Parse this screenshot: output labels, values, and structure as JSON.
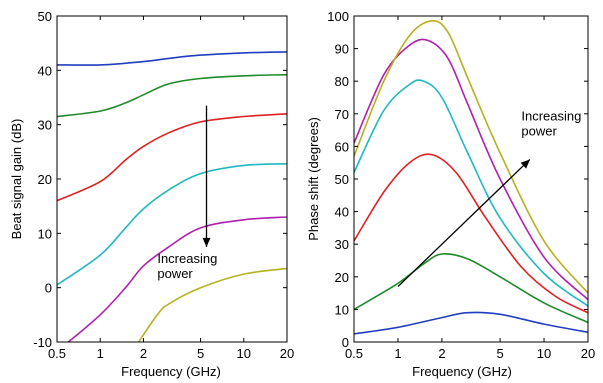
{
  "chart_data": [
    {
      "type": "line",
      "xlabel": "Frequency (GHz)",
      "ylabel": "Beat signal gain (dB)",
      "xscale": "log",
      "xlim": [
        0.5,
        20
      ],
      "ylim": [
        -10,
        50
      ],
      "xticks": [
        0.5,
        1,
        2,
        5,
        10,
        20
      ],
      "xtick_labels": [
        "0.5",
        "1",
        "2",
        "5",
        "10",
        "20"
      ],
      "yticks": [
        -10,
        0,
        10,
        20,
        30,
        40,
        50
      ],
      "ytick_labels": [
        "-10",
        "0",
        "10",
        "20",
        "30",
        "40",
        "50"
      ],
      "grid": false,
      "annotation": {
        "text_lines": [
          "Increasing",
          "power"
        ],
        "arrow_from": [
          5.5,
          33.5
        ],
        "arrow_to": [
          5.5,
          7.5
        ],
        "text_at": [
          2.5,
          4.5
        ]
      },
      "series": [
        {
          "color": "#1f3fbf",
          "x": [
            0.5,
            1,
            2,
            3,
            5,
            10,
            20
          ],
          "y": [
            41,
            41,
            41.6,
            42.2,
            42.8,
            43.2,
            43.4
          ]
        },
        {
          "color": "#1f8a2a",
          "x": [
            0.5,
            1,
            1.5,
            2,
            3,
            5,
            10,
            20
          ],
          "y": [
            31.5,
            32.5,
            34,
            35.5,
            37.5,
            38.5,
            39,
            39.2
          ]
        },
        {
          "color": "#e02020",
          "x": [
            0.5,
            1,
            1.5,
            2,
            3,
            5,
            10,
            20
          ],
          "y": [
            16,
            19.5,
            23.5,
            26,
            28.5,
            30.5,
            31.5,
            32
          ]
        },
        {
          "color": "#20b8c0",
          "x": [
            0.5,
            1,
            1.5,
            2,
            3,
            5,
            10,
            20
          ],
          "y": [
            0.5,
            6,
            11,
            14.5,
            18,
            21,
            22.5,
            22.8
          ]
        },
        {
          "color": "#b020b0",
          "x": [
            0.6,
            1,
            1.5,
            2,
            3,
            5,
            10,
            20
          ],
          "y": [
            -10,
            -5,
            0,
            4,
            7.5,
            11,
            12.5,
            13
          ]
        },
        {
          "color": "#b8b020",
          "x": [
            1.85,
            2.5,
            3,
            5,
            10,
            20
          ],
          "y": [
            -10,
            -5,
            -3,
            0,
            2.5,
            3.5
          ]
        }
      ]
    },
    {
      "type": "line",
      "xlabel": "Frequency (GHz)",
      "ylabel": "Phase shift (degrees)",
      "xscale": "log",
      "xlim": [
        0.5,
        20
      ],
      "ylim": [
        0,
        100
      ],
      "xticks": [
        0.5,
        1,
        2,
        5,
        10,
        20
      ],
      "xtick_labels": [
        "0.5",
        "1",
        "2",
        "5",
        "10",
        "20"
      ],
      "yticks": [
        0,
        10,
        20,
        30,
        40,
        50,
        60,
        70,
        80,
        90,
        100
      ],
      "ytick_labels": [
        "0",
        "10",
        "20",
        "30",
        "40",
        "50",
        "60",
        "70",
        "80",
        "90",
        "100"
      ],
      "grid": false,
      "annotation": {
        "text_lines": [
          "Increasing",
          "power"
        ],
        "arrow_from": [
          1,
          17
        ],
        "arrow_to": [
          8,
          56
        ],
        "text_at": [
          7,
          68
        ]
      },
      "series": [
        {
          "color": "#1f3fbf",
          "x": [
            0.5,
            1,
            2,
            3,
            5,
            10,
            20
          ],
          "y": [
            2.5,
            4.5,
            7.5,
            9,
            8.5,
            5.5,
            3
          ]
        },
        {
          "color": "#1f8a2a",
          "x": [
            0.5,
            1,
            1.5,
            2,
            3,
            5,
            10,
            20
          ],
          "y": [
            10,
            18,
            24,
            27,
            25.5,
            20,
            12,
            6
          ]
        },
        {
          "color": "#e02020",
          "x": [
            0.5,
            0.8,
            1.2,
            1.7,
            2.5,
            4,
            7,
            12,
            20
          ],
          "y": [
            31,
            46,
            55,
            57.5,
            52,
            38,
            23,
            14,
            9
          ]
        },
        {
          "color": "#20b8c0",
          "x": [
            0.5,
            0.8,
            1.2,
            1.5,
            2,
            3,
            5,
            10,
            20
          ],
          "y": [
            52,
            71,
            79,
            80,
            75,
            58,
            38,
            21,
            11
          ]
        },
        {
          "color": "#b020b0",
          "x": [
            0.5,
            0.8,
            1.2,
            1.6,
            2.2,
            3,
            5,
            10,
            20
          ],
          "y": [
            61,
            82,
            91,
            92.5,
            87,
            73,
            50,
            26,
            13
          ]
        },
        {
          "color": "#b8b020",
          "x": [
            0.5,
            0.8,
            1.2,
            1.7,
            2.2,
            3,
            5,
            10,
            20
          ],
          "y": [
            57,
            80,
            94,
            98.5,
            95,
            81,
            58,
            31,
            15
          ]
        }
      ]
    }
  ]
}
